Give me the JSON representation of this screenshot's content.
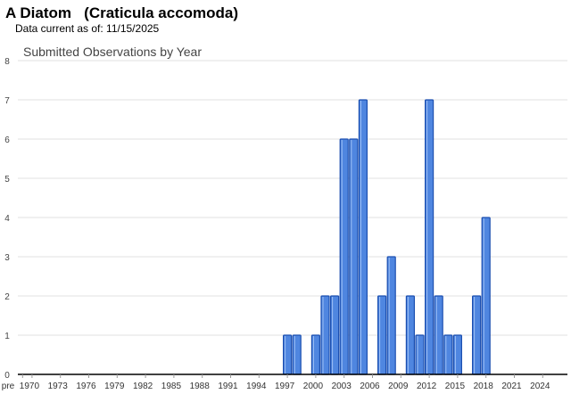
{
  "header": {
    "title": "A Diatom   (Craticula accomoda)",
    "data_current": "Data current as of: 11/15/2025"
  },
  "colors": {
    "bar_fill": "#4f86e0",
    "bar_stroke": "#1c4fb0",
    "grid": "#e0e0e0"
  },
  "chart_data": {
    "type": "bar",
    "title": "Submitted Observations by Year",
    "xlabel": "",
    "ylabel": "",
    "ylim": [
      0,
      8
    ],
    "yticks": [
      0,
      1,
      2,
      3,
      4,
      5,
      6,
      7,
      8
    ],
    "grid": true,
    "xtick_labels": [
      "pre",
      "1970",
      "1973",
      "1976",
      "1979",
      "1982",
      "1985",
      "1988",
      "1991",
      "1994",
      "1997",
      "2000",
      "2003",
      "2006",
      "2009",
      "2012",
      "2015",
      "2018",
      "2021",
      "2024"
    ],
    "categories": [
      "pre",
      "1970",
      "1971",
      "1972",
      "1973",
      "1974",
      "1975",
      "1976",
      "1977",
      "1978",
      "1979",
      "1980",
      "1981",
      "1982",
      "1983",
      "1984",
      "1985",
      "1986",
      "1987",
      "1988",
      "1989",
      "1990",
      "1991",
      "1992",
      "1993",
      "1994",
      "1995",
      "1996",
      "1997",
      "1998",
      "1999",
      "2000",
      "2001",
      "2002",
      "2003",
      "2004",
      "2005",
      "2006",
      "2007",
      "2008",
      "2009",
      "2010",
      "2011",
      "2012",
      "2013",
      "2014",
      "2015",
      "2016",
      "2017",
      "2018",
      "2019",
      "2020",
      "2021",
      "2022",
      "2023",
      "2024",
      "2025"
    ],
    "values": [
      0,
      0,
      0,
      0,
      0,
      0,
      0,
      0,
      0,
      0,
      0,
      0,
      0,
      0,
      0,
      0,
      0,
      0,
      0,
      0,
      0,
      0,
      0,
      0,
      0,
      0,
      0,
      0,
      1,
      1,
      0,
      1,
      2,
      2,
      6,
      6,
      7,
      0,
      2,
      3,
      0,
      2,
      1,
      7,
      2,
      1,
      1,
      0,
      2,
      4,
      0,
      0,
      0,
      0,
      0,
      0,
      0
    ]
  }
}
